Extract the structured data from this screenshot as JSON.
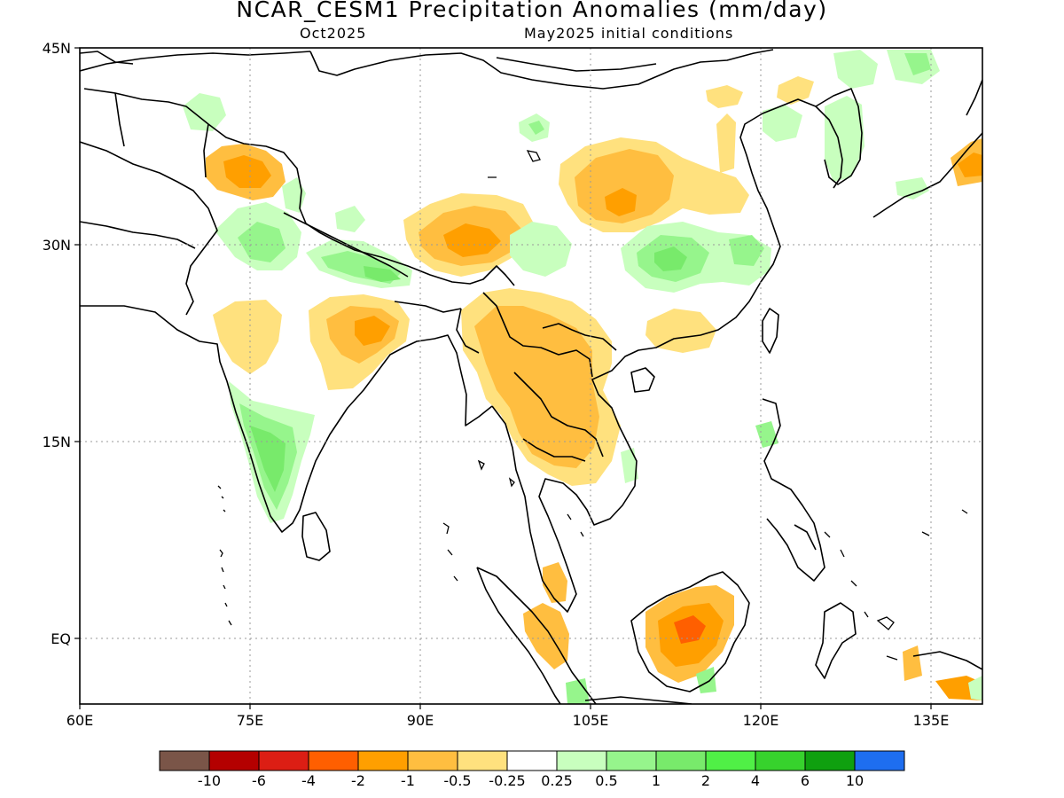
{
  "title": "NCAR_CESM1 Precipitation Anomalies (mm/day)",
  "subtitle_left": "Oct2025",
  "subtitle_right": "May2025 initial conditions",
  "map": {
    "lon_range": [
      60,
      140
    ],
    "lat_range": [
      -6,
      45
    ],
    "gridlines": "dotted",
    "lat_labels": [
      "45N",
      "30N",
      "15N",
      "EQ"
    ],
    "lon_labels": [
      "60E",
      "75E",
      "90E",
      "105E",
      "120E",
      "135E"
    ],
    "lat_ticks": [
      45,
      30,
      15,
      0
    ],
    "lon_ticks": [
      60,
      75,
      90,
      105,
      120,
      135
    ]
  },
  "legend": {
    "colors": [
      "#7a5548",
      "#b40000",
      "#dc1e14",
      "#ff5f00",
      "#ff9f00",
      "#ffbe40",
      "#ffe17e",
      "#ffffff",
      "#c8ffbe",
      "#96f58c",
      "#78ea6b",
      "#50f046",
      "#37d22d",
      "#0fa00f",
      "#1e6ef0"
    ],
    "labels": [
      "-10",
      "-6",
      "-4",
      "-2",
      "-1",
      "-0.5",
      "-0.25",
      "0.25",
      "0.5",
      "1",
      "2",
      "4",
      "6",
      "10"
    ]
  },
  "anomaly_regions": [
    {
      "name": "karakoram",
      "color": "#ffbe40"
    },
    {
      "name": "tibet-central",
      "color": "#ffbe40"
    },
    {
      "name": "china-central",
      "color": "#ffbe40"
    },
    {
      "name": "india-east",
      "color": "#ffbe40"
    },
    {
      "name": "myanmar-indochina",
      "color": "#ffbe40"
    },
    {
      "name": "borneo",
      "color": "#ff9f00"
    },
    {
      "name": "sumatra",
      "color": "#ffbe40"
    },
    {
      "name": "india-west-coast",
      "color": "#78ea6b"
    },
    {
      "name": "nepal",
      "color": "#78ea6b"
    },
    {
      "name": "china-east",
      "color": "#78ea6b"
    }
  ]
}
